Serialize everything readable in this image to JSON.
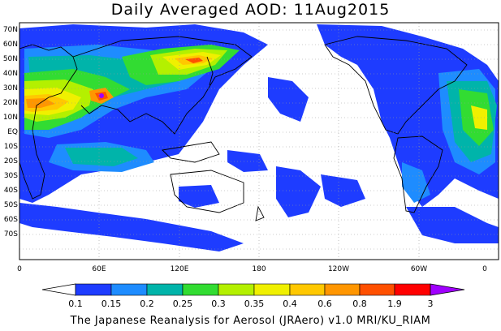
{
  "title": "Daily Averaged AOD: 11Aug2015",
  "map": {
    "lat_labels": [
      "70N",
      "60N",
      "50N",
      "40N",
      "30N",
      "20N",
      "10N",
      "EQ",
      "10S",
      "20S",
      "30S",
      "40S",
      "50S",
      "60S",
      "70S"
    ],
    "lon_labels": [
      "0",
      "60E",
      "120E",
      "180",
      "120W",
      "60W",
      "0"
    ]
  },
  "colorbar": {
    "ticks": [
      "0.1",
      "0.15",
      "0.2",
      "0.25",
      "0.3",
      "0.35",
      "0.4",
      "0.6",
      "0.8",
      "1.9",
      "3"
    ],
    "colors": [
      "#ffffff",
      "#1e3cff",
      "#1e8cff",
      "#00b4aa",
      "#32dc32",
      "#b4f000",
      "#f0f000",
      "#ffc800",
      "#ff9600",
      "#ff5000",
      "#ff0000",
      "#a000ff"
    ]
  },
  "credit": "The Japanese Reanalysis for Aerosol (JRAero) v1.0 MRI/KU_RIAM"
}
